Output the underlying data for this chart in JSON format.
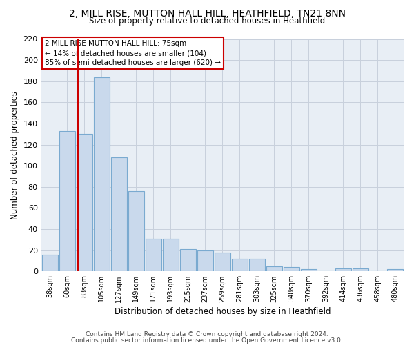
{
  "title1": "2, MILL RISE, MUTTON HALL HILL, HEATHFIELD, TN21 8NN",
  "title2": "Size of property relative to detached houses in Heathfield",
  "xlabel": "Distribution of detached houses by size in Heathfield",
  "ylabel": "Number of detached properties",
  "categories": [
    "38sqm",
    "60sqm",
    "83sqm",
    "105sqm",
    "127sqm",
    "149sqm",
    "171sqm",
    "193sqm",
    "215sqm",
    "237sqm",
    "259sqm",
    "281sqm",
    "303sqm",
    "325sqm",
    "348sqm",
    "370sqm",
    "392sqm",
    "414sqm",
    "436sqm",
    "458sqm",
    "480sqm"
  ],
  "values": [
    16,
    133,
    130,
    184,
    108,
    76,
    31,
    31,
    21,
    20,
    18,
    12,
    12,
    5,
    4,
    2,
    0,
    3,
    3,
    0,
    2
  ],
  "bar_color": "#c9d9ec",
  "bar_edge_color": "#7aaad0",
  "grid_color": "#c8d0dc",
  "annotation_box_text": "2 MILL RISE MUTTON HALL HILL: 75sqm\n← 14% of detached houses are smaller (104)\n85% of semi-detached houses are larger (620) →",
  "vline_x": 1.5,
  "vline_color": "#cc0000",
  "footer1": "Contains HM Land Registry data © Crown copyright and database right 2024.",
  "footer2": "Contains public sector information licensed under the Open Government Licence v3.0.",
  "ylim": [
    0,
    220
  ],
  "yticks": [
    0,
    20,
    40,
    60,
    80,
    100,
    120,
    140,
    160,
    180,
    200,
    220
  ],
  "bg_color": "#e8eef5"
}
